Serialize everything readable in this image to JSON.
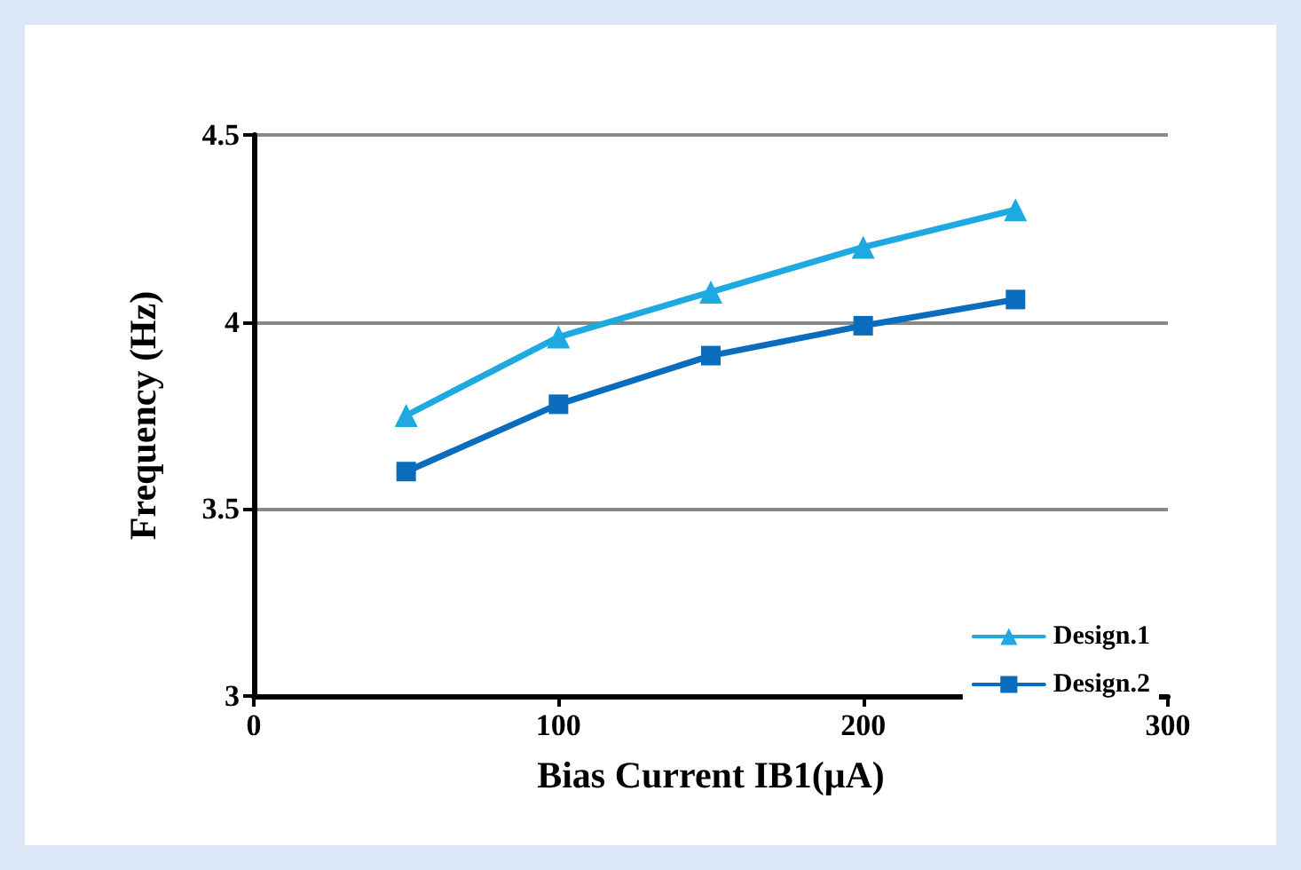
{
  "chart_data": {
    "type": "line",
    "xlabel": "Bias Current IB1(μA)",
    "ylabel": "Frequency (Hz)",
    "x": [
      50,
      100,
      150,
      200,
      250
    ],
    "series": [
      {
        "name": "Design.1",
        "color": "#1fa9e1",
        "marker": "triangle",
        "values": [
          3.75,
          3.96,
          4.08,
          4.2,
          4.3
        ]
      },
      {
        "name": "Design.2",
        "color": "#0a6cbd",
        "marker": "square",
        "values": [
          3.6,
          3.78,
          3.91,
          3.99,
          4.06
        ]
      }
    ],
    "xlim": [
      0,
      300
    ],
    "xticks": [
      0,
      100,
      200,
      300
    ],
    "ylim": [
      3,
      4.5
    ],
    "yticks": [
      3,
      3.5,
      4,
      4.5
    ],
    "grid": "y",
    "legend": "bottom right",
    "line_style": "solid"
  }
}
